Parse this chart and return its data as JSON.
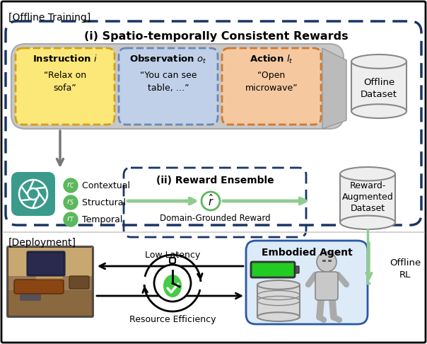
{
  "title": "(i) Spatio-temporally Consistent Rewards",
  "offline_training_label": "[Offline Training]",
  "deployment_label": "[Deployment]",
  "instruction_title": "Instruction $\\mathit{i}$",
  "instruction_text": "“Relax on\nsofa”",
  "observation_title": "Observation $\\mathit{o}_t$",
  "observation_text": "“You can see\ntable, …”",
  "action_title": "Action $\\mathit{l}_t$",
  "action_text": "“Open\nmicrowave”",
  "offline_dataset": "Offline\nDataset",
  "reward_ensemble_title": "(ii) Reward Ensemble",
  "domain_grounded": "Domain-Grounded Reward",
  "reward_augmented": "Reward-\nAugmented\nDataset",
  "low_latency": "Low Latency",
  "resource_efficiency": "Resource Efficiency",
  "embodied_agent": "Embodied Agent",
  "offline_rl": "Offline\nRL",
  "bg": "#ffffff",
  "dashed_blue": "#1a3564",
  "gray_pill_fill": "#c8c8c8",
  "gray_pill_edge": "#aaaaaa",
  "instr_fill": "#fce878",
  "instr_edge": "#d4a010",
  "obs_fill": "#c0d0e8",
  "obs_edge": "#6888b8",
  "act_fill": "#f5c8a0",
  "act_edge": "#d07830",
  "teal": "#3a9b8c",
  "green_circle": "#5cb85c",
  "green_arrow": "#90cc90",
  "embod_fill": "#ddeaf8",
  "embod_edge": "#2858a8",
  "cyl_fill": "#eeeeee",
  "cyl_edge": "#888888",
  "sep_color": "#cccccc",
  "arrow_gray": "#777777"
}
